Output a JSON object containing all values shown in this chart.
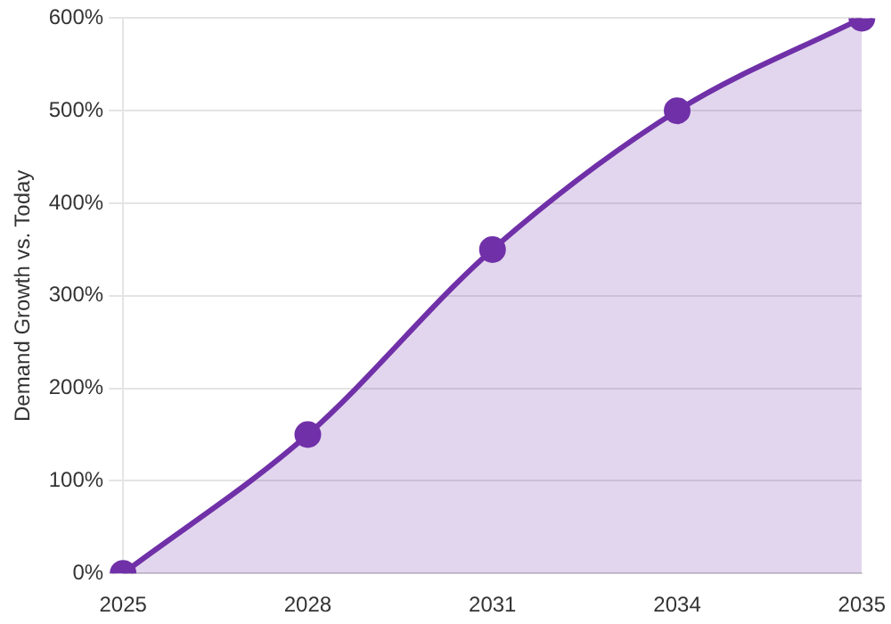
{
  "chart_data": {
    "type": "area",
    "ylabel": "Demand Growth vs. Today",
    "categories": [
      "2025",
      "2028",
      "2031",
      "2034",
      "2035"
    ],
    "series": [
      {
        "color": "#7030a8",
        "values": [
          0,
          150,
          350,
          500,
          600
        ]
      }
    ],
    "ylim": [
      0,
      600
    ],
    "yticks": [
      {
        "value": 0,
        "label": "0%"
      },
      {
        "value": 100,
        "label": "100%"
      },
      {
        "value": 200,
        "label": "200%"
      },
      {
        "value": 300,
        "label": "300%"
      },
      {
        "value": 400,
        "label": "400%"
      },
      {
        "value": 500,
        "label": "500%"
      },
      {
        "value": 600,
        "label": "600%"
      }
    ],
    "grid": "y",
    "legend": false,
    "marker": "circle",
    "line_style": "solid"
  }
}
